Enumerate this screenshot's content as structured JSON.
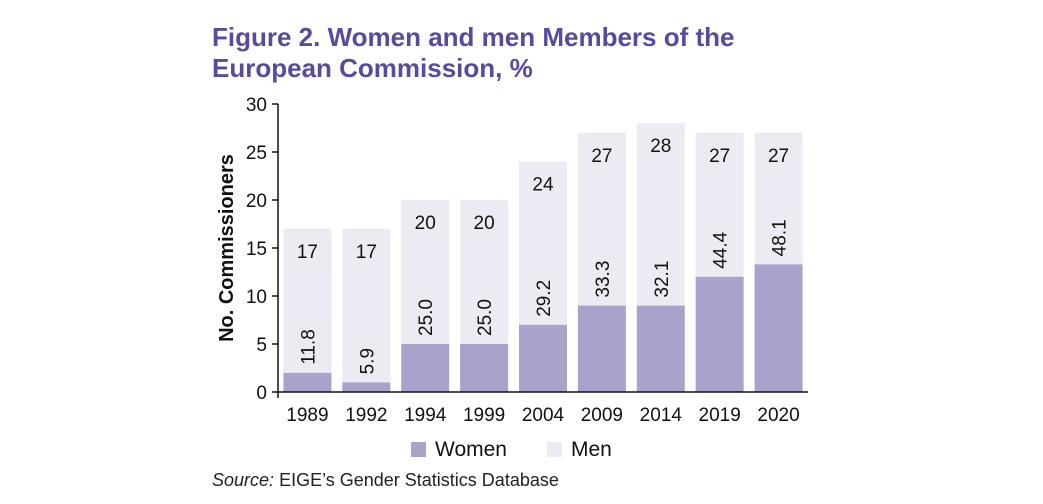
{
  "title": "Figure 2. Women and men Members of the European Commission, %",
  "source_label": "Source:",
  "source_text": "EIGE’s Gender Statistics Database",
  "colors": {
    "women": "#aba2cc",
    "men": "#edeaf3",
    "title": "#5a4a9c"
  },
  "chart_data": {
    "type": "bar",
    "stacked": true,
    "categories": [
      "1989",
      "1992",
      "1994",
      "1999",
      "2004",
      "2009",
      "2014",
      "2019",
      "2020"
    ],
    "series": [
      {
        "name": "Women",
        "values": [
          2,
          1,
          5,
          5,
          7,
          9,
          9,
          12,
          13.3
        ]
      },
      {
        "name": "Men",
        "values": [
          15,
          16,
          15,
          15,
          17,
          18,
          19,
          15,
          13.7
        ]
      }
    ],
    "totals": [
      17,
      17,
      20,
      20,
      24,
      27,
      28,
      27,
      27
    ],
    "women_pct_labels": [
      "11.8",
      "5.9",
      "25.0",
      "25.0",
      "29.2",
      "33.3",
      "32.1",
      "44.4",
      "48.1"
    ],
    "total_labels": [
      "17",
      "17",
      "20",
      "20",
      "24",
      "27",
      "28",
      "27",
      "27"
    ],
    "ylabel": "No. Commissioners",
    "xlabel": "",
    "ylim": [
      0,
      30
    ],
    "yticks": [
      0,
      5,
      10,
      15,
      20,
      25,
      30
    ],
    "legend": {
      "position": "bottom",
      "entries": [
        "Women",
        "Men"
      ]
    },
    "grid": false
  }
}
